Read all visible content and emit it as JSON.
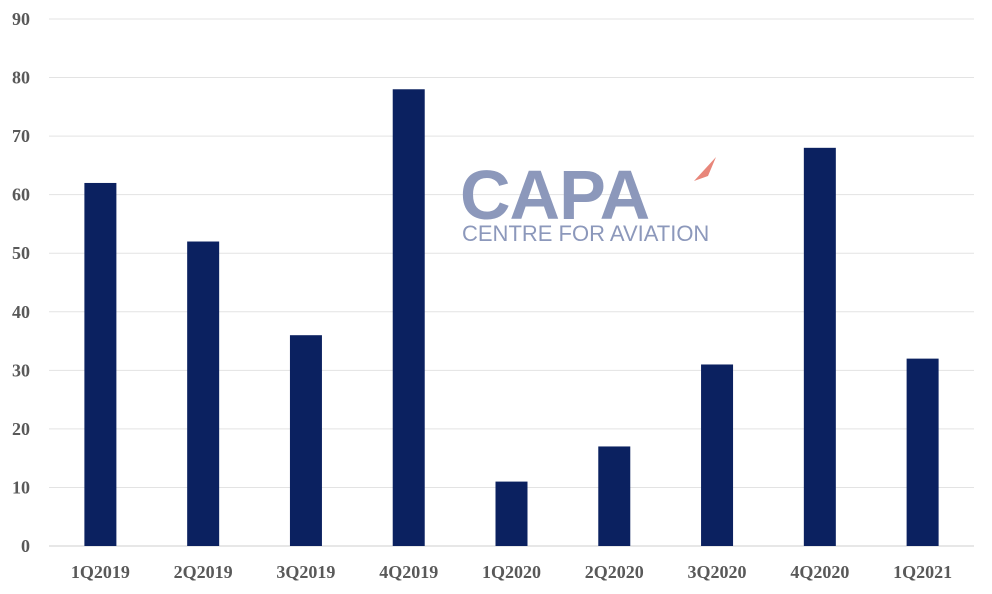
{
  "chart_data": {
    "type": "bar",
    "title": "",
    "xlabel": "",
    "ylabel": "",
    "categories": [
      "1Q2019",
      "2Q2019",
      "3Q2019",
      "4Q2019",
      "1Q2020",
      "2Q2020",
      "3Q2020",
      "4Q2020",
      "1Q2021"
    ],
    "values": [
      62,
      52,
      36,
      78,
      11,
      17,
      31,
      68,
      32
    ],
    "ylim": [
      0,
      90
    ],
    "yticks": [
      0,
      10,
      20,
      30,
      40,
      50,
      60,
      70,
      80,
      90
    ],
    "grid": true,
    "legend": "none",
    "bar_color": "#0b2160"
  },
  "watermark": {
    "word": "CAPA",
    "tagline": "CENTRE FOR AVIATION",
    "color": "#8c98bb",
    "accent_color": "#e8867a"
  }
}
